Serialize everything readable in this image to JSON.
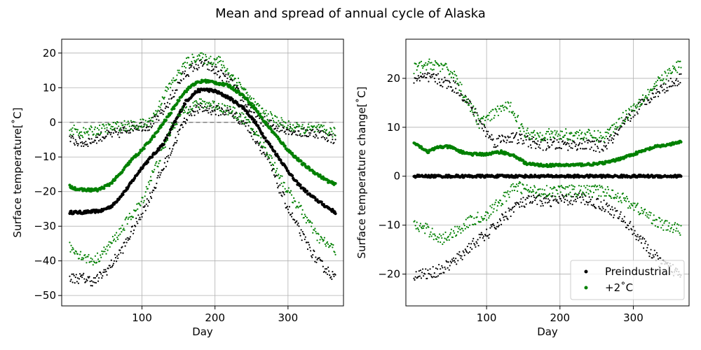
{
  "figure": {
    "suptitle": "Mean and spread of annual cycle of Alaska"
  },
  "colors": {
    "preindustrial": "#000000",
    "plus2": "#008000",
    "grid": "#b0b0b0",
    "zero_line": "#808080"
  },
  "chart_data": [
    {
      "type": "scatter",
      "title": "",
      "xlabel": "Day",
      "ylabel": "Surface temperature[$^{\\circ}$C]",
      "ylabel_text": "Surface temperature[˚C]",
      "xlim": [
        -10,
        376
      ],
      "ylim": [
        -53,
        24
      ],
      "xticks": [
        100,
        200,
        300
      ],
      "yticks": [
        -50,
        -40,
        -30,
        -20,
        -10,
        0,
        10,
        20
      ],
      "grid": true,
      "reference_line": {
        "y": 0,
        "style": "dashed"
      },
      "series": [
        {
          "name": "Preindustrial mean",
          "color": "#000000",
          "role": "mean",
          "anchors": [
            [
              1,
              -26
            ],
            [
              20,
              -26
            ],
            [
              45,
              -25.5
            ],
            [
              60,
              -24
            ],
            [
              80,
              -19
            ],
            [
              100,
              -13
            ],
            [
              115,
              -9.5
            ],
            [
              130,
              -6
            ],
            [
              145,
              0
            ],
            [
              160,
              6
            ],
            [
              175,
              9
            ],
            [
              185,
              9.5
            ],
            [
              200,
              9
            ],
            [
              220,
              7
            ],
            [
              240,
              4
            ],
            [
              255,
              0
            ],
            [
              270,
              -5
            ],
            [
              290,
              -11
            ],
            [
              310,
              -17
            ],
            [
              330,
              -21
            ],
            [
              350,
              -24
            ],
            [
              365,
              -26
            ]
          ]
        },
        {
          "name": "Preindustrial max",
          "color": "#000000",
          "role": "spread",
          "anchors": [
            [
              1,
              -5
            ],
            [
              20,
              -6
            ],
            [
              45,
              -4
            ],
            [
              70,
              -3
            ],
            [
              90,
              -1
            ],
            [
              110,
              -1
            ],
            [
              125,
              2
            ],
            [
              140,
              7
            ],
            [
              155,
              13
            ],
            [
              170,
              16
            ],
            [
              185,
              17
            ],
            [
              200,
              15
            ],
            [
              220,
              12
            ],
            [
              240,
              6
            ],
            [
              260,
              1
            ],
            [
              280,
              -1
            ],
            [
              300,
              -2
            ],
            [
              320,
              -3
            ],
            [
              340,
              -3
            ],
            [
              365,
              -5
            ]
          ]
        },
        {
          "name": "Preindustrial min",
          "color": "#000000",
          "role": "spread",
          "anchors": [
            [
              1,
              -45
            ],
            [
              20,
              -45
            ],
            [
              35,
              -46
            ],
            [
              55,
              -42
            ],
            [
              75,
              -36
            ],
            [
              95,
              -28
            ],
            [
              110,
              -22
            ],
            [
              125,
              -15
            ],
            [
              140,
              -8
            ],
            [
              155,
              -1
            ],
            [
              165,
              3
            ],
            [
              180,
              4
            ],
            [
              200,
              3.5
            ],
            [
              220,
              3
            ],
            [
              240,
              0
            ],
            [
              260,
              -6
            ],
            [
              275,
              -12
            ],
            [
              290,
              -20
            ],
            [
              305,
              -27
            ],
            [
              320,
              -33
            ],
            [
              340,
              -40
            ],
            [
              360,
              -44
            ],
            [
              365,
              -45
            ]
          ]
        },
        {
          "name": "+2˚C mean",
          "color": "#008000",
          "role": "mean",
          "anchors": [
            [
              1,
              -18.5
            ],
            [
              15,
              -19.5
            ],
            [
              40,
              -19.5
            ],
            [
              55,
              -18
            ],
            [
              70,
              -15
            ],
            [
              85,
              -11
            ],
            [
              100,
              -8
            ],
            [
              120,
              -3
            ],
            [
              140,
              3
            ],
            [
              155,
              8
            ],
            [
              170,
              11
            ],
            [
              185,
              12
            ],
            [
              200,
              11.5
            ],
            [
              220,
              10.5
            ],
            [
              240,
              7.5
            ],
            [
              255,
              4
            ],
            [
              265,
              1
            ],
            [
              280,
              -3
            ],
            [
              300,
              -8
            ],
            [
              320,
              -12
            ],
            [
              340,
              -15
            ],
            [
              355,
              -17
            ],
            [
              365,
              -18
            ]
          ]
        },
        {
          "name": "+2˚C max",
          "color": "#008000",
          "role": "spread",
          "anchors": [
            [
              1,
              -2
            ],
            [
              20,
              -3
            ],
            [
              45,
              -2
            ],
            [
              70,
              -1
            ],
            [
              90,
              -1
            ],
            [
              110,
              0
            ],
            [
              120,
              3
            ],
            [
              130,
              8
            ],
            [
              140,
              11
            ],
            [
              150,
              14
            ],
            [
              160,
              17
            ],
            [
              175,
              19
            ],
            [
              190,
              18
            ],
            [
              205,
              18
            ],
            [
              220,
              14
            ],
            [
              235,
              11
            ],
            [
              250,
              6
            ],
            [
              265,
              3
            ],
            [
              280,
              1
            ],
            [
              300,
              -1
            ],
            [
              320,
              -2
            ],
            [
              340,
              -2
            ],
            [
              365,
              -3
            ]
          ]
        },
        {
          "name": "+2˚C min",
          "color": "#008000",
          "role": "spread",
          "anchors": [
            [
              1,
              -36
            ],
            [
              20,
              -39
            ],
            [
              35,
              -40
            ],
            [
              50,
              -37
            ],
            [
              65,
              -33
            ],
            [
              85,
              -27
            ],
            [
              100,
              -23
            ],
            [
              110,
              -17
            ],
            [
              125,
              -10
            ],
            [
              140,
              -2
            ],
            [
              155,
              3
            ],
            [
              170,
              5
            ],
            [
              185,
              5.5
            ],
            [
              200,
              5
            ],
            [
              220,
              3.5
            ],
            [
              240,
              1
            ],
            [
              255,
              -3
            ],
            [
              270,
              -8
            ],
            [
              285,
              -14
            ],
            [
              300,
              -20
            ],
            [
              320,
              -26
            ],
            [
              340,
              -33
            ],
            [
              365,
              -37
            ]
          ]
        }
      ]
    },
    {
      "type": "scatter",
      "title": "",
      "xlabel": "Day",
      "ylabel": "Surface temperature change[$^{\\circ}$C]",
      "ylabel_text": "Surface temperature change[˚C]",
      "xlim": [
        -10,
        376
      ],
      "ylim": [
        -26.5,
        28
      ],
      "xticks": [
        100,
        200,
        300
      ],
      "yticks": [
        -20,
        -10,
        0,
        10,
        20
      ],
      "grid": true,
      "legend": {
        "placement": "lower right",
        "entries": [
          "Preindustrial",
          "+2˚C"
        ]
      },
      "series": [
        {
          "name": "Preindustrial mean",
          "color": "#000000",
          "role": "mean",
          "anchors": [
            [
              1,
              0
            ],
            [
              365,
              0
            ]
          ]
        },
        {
          "name": "Preindustrial max",
          "color": "#000000",
          "role": "spread",
          "anchors": [
            [
              1,
              20
            ],
            [
              30,
              20
            ],
            [
              60,
              18
            ],
            [
              80,
              14
            ],
            [
              95,
              10
            ],
            [
              110,
              7
            ],
            [
              130,
              8
            ],
            [
              150,
              7.5
            ],
            [
              170,
              6.5
            ],
            [
              200,
              6.5
            ],
            [
              230,
              6.5
            ],
            [
              260,
              6
            ],
            [
              280,
              9
            ],
            [
              300,
              13
            ],
            [
              320,
              16
            ],
            [
              340,
              18
            ],
            [
              365,
              20
            ]
          ]
        },
        {
          "name": "Preindustrial min",
          "color": "#000000",
          "role": "spread",
          "anchors": [
            [
              1,
              -20
            ],
            [
              20,
              -20
            ],
            [
              40,
              -19
            ],
            [
              60,
              -17
            ],
            [
              80,
              -14
            ],
            [
              100,
              -12
            ],
            [
              120,
              -9
            ],
            [
              140,
              -6
            ],
            [
              160,
              -5
            ],
            [
              200,
              -5
            ],
            [
              230,
              -4.5
            ],
            [
              260,
              -6
            ],
            [
              280,
              -8
            ],
            [
              300,
              -11
            ],
            [
              320,
              -15
            ],
            [
              340,
              -18
            ],
            [
              365,
              -20
            ]
          ]
        },
        {
          "name": "+2˚C mean",
          "color": "#008000",
          "role": "mean",
          "anchors": [
            [
              1,
              7
            ],
            [
              10,
              6
            ],
            [
              20,
              5
            ],
            [
              35,
              6
            ],
            [
              50,
              6
            ],
            [
              65,
              5
            ],
            [
              80,
              4.5
            ],
            [
              100,
              4.5
            ],
            [
              120,
              5
            ],
            [
              140,
              4
            ],
            [
              155,
              2.5
            ],
            [
              180,
              2.2
            ],
            [
              220,
              2.3
            ],
            [
              250,
              2.5
            ],
            [
              270,
              3
            ],
            [
              290,
              4
            ],
            [
              310,
              5
            ],
            [
              330,
              6
            ],
            [
              350,
              6.5
            ],
            [
              365,
              7
            ]
          ]
        },
        {
          "name": "+2˚C max",
          "color": "#008000",
          "role": "spread",
          "anchors": [
            [
              1,
              22
            ],
            [
              30,
              23
            ],
            [
              55,
              21
            ],
            [
              75,
              15
            ],
            [
              90,
              11
            ],
            [
              105,
              12
            ],
            [
              120,
              14
            ],
            [
              135,
              14
            ],
            [
              150,
              9
            ],
            [
              170,
              8.5
            ],
            [
              200,
              8.5
            ],
            [
              230,
              8.5
            ],
            [
              260,
              8
            ],
            [
              280,
              11
            ],
            [
              300,
              14
            ],
            [
              320,
              17
            ],
            [
              340,
              20
            ],
            [
              365,
              23
            ]
          ]
        },
        {
          "name": "+2˚C min",
          "color": "#008000",
          "role": "spread",
          "anchors": [
            [
              1,
              -10
            ],
            [
              20,
              -11
            ],
            [
              40,
              -13
            ],
            [
              60,
              -11
            ],
            [
              80,
              -9
            ],
            [
              100,
              -8
            ],
            [
              120,
              -5
            ],
            [
              140,
              -2
            ],
            [
              160,
              -3
            ],
            [
              200,
              -3
            ],
            [
              230,
              -3
            ],
            [
              260,
              -3
            ],
            [
              280,
              -4
            ],
            [
              300,
              -6
            ],
            [
              320,
              -8
            ],
            [
              340,
              -10
            ],
            [
              365,
              -11
            ]
          ]
        }
      ]
    }
  ]
}
